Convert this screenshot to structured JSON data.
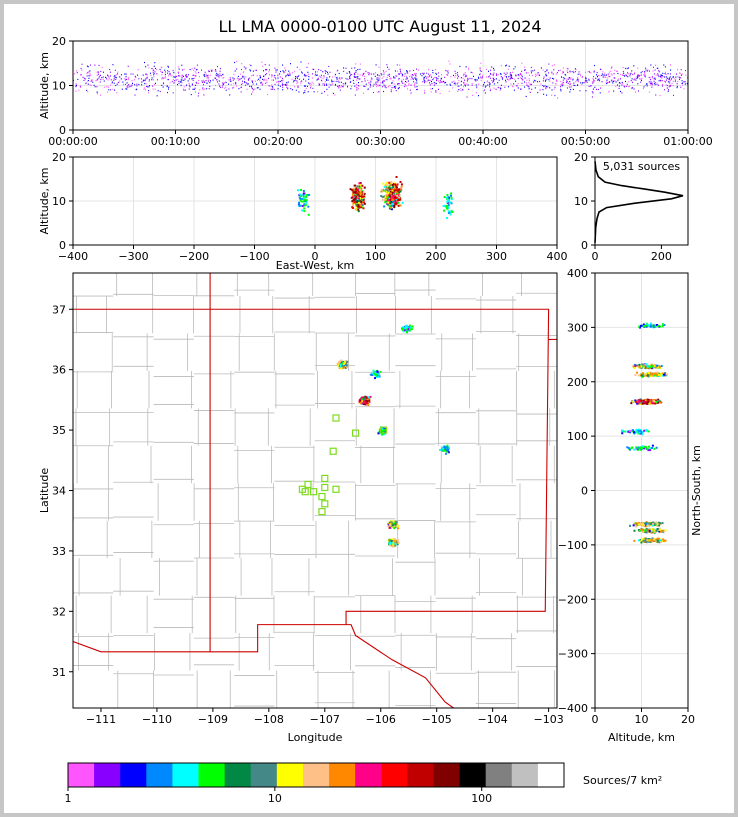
{
  "title": "LL LMA 0000-0100 UTC August 11, 2024",
  "colors": {
    "state_border": "#cc0000",
    "county_border": "#bbbbbb",
    "station_marker": "#7ddc1f",
    "altitude_profile": "#000000"
  },
  "chart_data": [
    {
      "id": "time-height",
      "type": "scatter",
      "title": "LL LMA 0000-0100 UTC August 11, 2024",
      "xlabel": "",
      "ylabel": "Altitude, km",
      "x_ticks": [
        "00:00:00",
        "00:10:00",
        "00:20:00",
        "00:30:00",
        "00:40:00",
        "00:50:00",
        "01:00:00"
      ],
      "xlim_minutes": [
        0,
        60
      ],
      "ylim": [
        0,
        20
      ],
      "y_ticks": [
        0,
        10,
        20
      ],
      "typical_altitude_km": [
        8,
        15
      ],
      "grid": true
    },
    {
      "id": "ew-height",
      "type": "scatter",
      "xlabel": "East-West, km",
      "ylabel": "Altitude, km",
      "xlim": [
        -400,
        400
      ],
      "x_ticks": [
        -400,
        -300,
        -200,
        -100,
        0,
        100,
        200,
        300,
        400
      ],
      "ylim": [
        0,
        20
      ],
      "y_ticks": [
        0,
        10,
        20
      ],
      "clusters": [
        {
          "x": -20,
          "z": 10.5,
          "density": "low"
        },
        {
          "x": 70,
          "z": 11,
          "density": "high"
        },
        {
          "x": 120,
          "z": 11.5,
          "density": "medium"
        },
        {
          "x": 130,
          "z": 12,
          "density": "high"
        },
        {
          "x": 220,
          "z": 9.5,
          "density": "low"
        }
      ],
      "grid": true
    },
    {
      "id": "altitude-histogram",
      "type": "line",
      "annotation": "5,031 sources",
      "xlim": [
        0,
        280
      ],
      "x_ticks": [
        0,
        200
      ],
      "ylim": [
        0,
        20
      ],
      "y_ticks": [
        0,
        10,
        20
      ],
      "profile": [
        {
          "alt": 0.5,
          "count": 0
        },
        {
          "alt": 4,
          "count": 2
        },
        {
          "alt": 6,
          "count": 6
        },
        {
          "alt": 7.5,
          "count": 12
        },
        {
          "alt": 8.5,
          "count": 35
        },
        {
          "alt": 9.5,
          "count": 120
        },
        {
          "alt": 10.5,
          "count": 230
        },
        {
          "alt": 11.2,
          "count": 265
        },
        {
          "alt": 12,
          "count": 210
        },
        {
          "alt": 12.7,
          "count": 150
        },
        {
          "alt": 13.5,
          "count": 80
        },
        {
          "alt": 14.3,
          "count": 30
        },
        {
          "alt": 15.5,
          "count": 10
        },
        {
          "alt": 17,
          "count": 3
        },
        {
          "alt": 19,
          "count": 0
        }
      ]
    },
    {
      "id": "plan-view",
      "type": "scatter",
      "xlabel": "Longitude",
      "ylabel": "Latitude",
      "xlim": [
        -111.5,
        -102.85
      ],
      "x_ticks": [
        -111,
        -110,
        -109,
        -108,
        -107,
        -106,
        -105,
        -104,
        -103
      ],
      "ylim": [
        30.4,
        37.6
      ],
      "y_ticks": [
        31,
        32,
        33,
        34,
        35,
        36,
        37
      ],
      "stations": [
        [
          -106.8,
          35.2
        ],
        [
          -106.45,
          34.95
        ],
        [
          -105.95,
          35.0
        ],
        [
          -106.85,
          34.65
        ],
        [
          -107.0,
          34.2
        ],
        [
          -107.3,
          34.1
        ],
        [
          -107.0,
          34.05
        ],
        [
          -106.8,
          34.02
        ],
        [
          -107.35,
          33.98
        ],
        [
          -107.2,
          33.98
        ],
        [
          -107.4,
          34.02
        ],
        [
          -107.05,
          33.9
        ],
        [
          -107.0,
          33.78
        ],
        [
          -107.05,
          33.65
        ]
      ],
      "clusters": [
        {
          "lon": -106.7,
          "lat": 36.1,
          "density": "medium"
        },
        {
          "lon": -106.1,
          "lat": 35.95,
          "density": "low"
        },
        {
          "lon": -106.3,
          "lat": 35.5,
          "density": "high"
        },
        {
          "lon": -106.0,
          "lat": 35.0,
          "density": "low"
        },
        {
          "lon": -105.55,
          "lat": 36.7,
          "density": "low"
        },
        {
          "lon": -105.8,
          "lat": 33.45,
          "density": "medium"
        },
        {
          "lon": -105.8,
          "lat": 33.15,
          "density": "medium"
        },
        {
          "lon": -104.85,
          "lat": 34.7,
          "density": "low"
        }
      ]
    },
    {
      "id": "ns-height",
      "type": "scatter",
      "xlabel": "Altitude, km",
      "ylabel": "North-South, km",
      "xlim": [
        0,
        20
      ],
      "x_ticks": [
        0,
        10,
        20
      ],
      "ylim": [
        -400,
        400
      ],
      "y_ticks": [
        -400,
        -300,
        -200,
        -100,
        0,
        100,
        200,
        300,
        400
      ],
      "clusters": [
        {
          "ns": 305,
          "z": 12,
          "density": "low"
        },
        {
          "ns": 230,
          "z": 11,
          "density": "medium"
        },
        {
          "ns": 215,
          "z": 12,
          "density": "medium"
        },
        {
          "ns": 165,
          "z": 11,
          "density": "high"
        },
        {
          "ns": 110,
          "z": 9,
          "density": "low"
        },
        {
          "ns": 80,
          "z": 10,
          "density": "low"
        },
        {
          "ns": -60,
          "z": 11,
          "density": "medium"
        },
        {
          "ns": -72,
          "z": 12,
          "density": "medium"
        },
        {
          "ns": -90,
          "z": 12,
          "density": "medium"
        }
      ]
    },
    {
      "id": "colorbar",
      "type": "heatmap",
      "label": "Sources/7 km²",
      "tick_labels": [
        "1",
        "10",
        "100"
      ],
      "scale": "log",
      "range": [
        1,
        250
      ],
      "colors": [
        "#ff55ff",
        "#8800ff",
        "#0000ff",
        "#0088ff",
        "#00ffff",
        "#00ff00",
        "#008844",
        "#448888",
        "#ffff00",
        "#ffc088",
        "#ff8800",
        "#ff0088",
        "#ff0000",
        "#c00000",
        "#800000",
        "#000000",
        "#808080",
        "#c0c0c0",
        "#ffffff"
      ]
    }
  ]
}
